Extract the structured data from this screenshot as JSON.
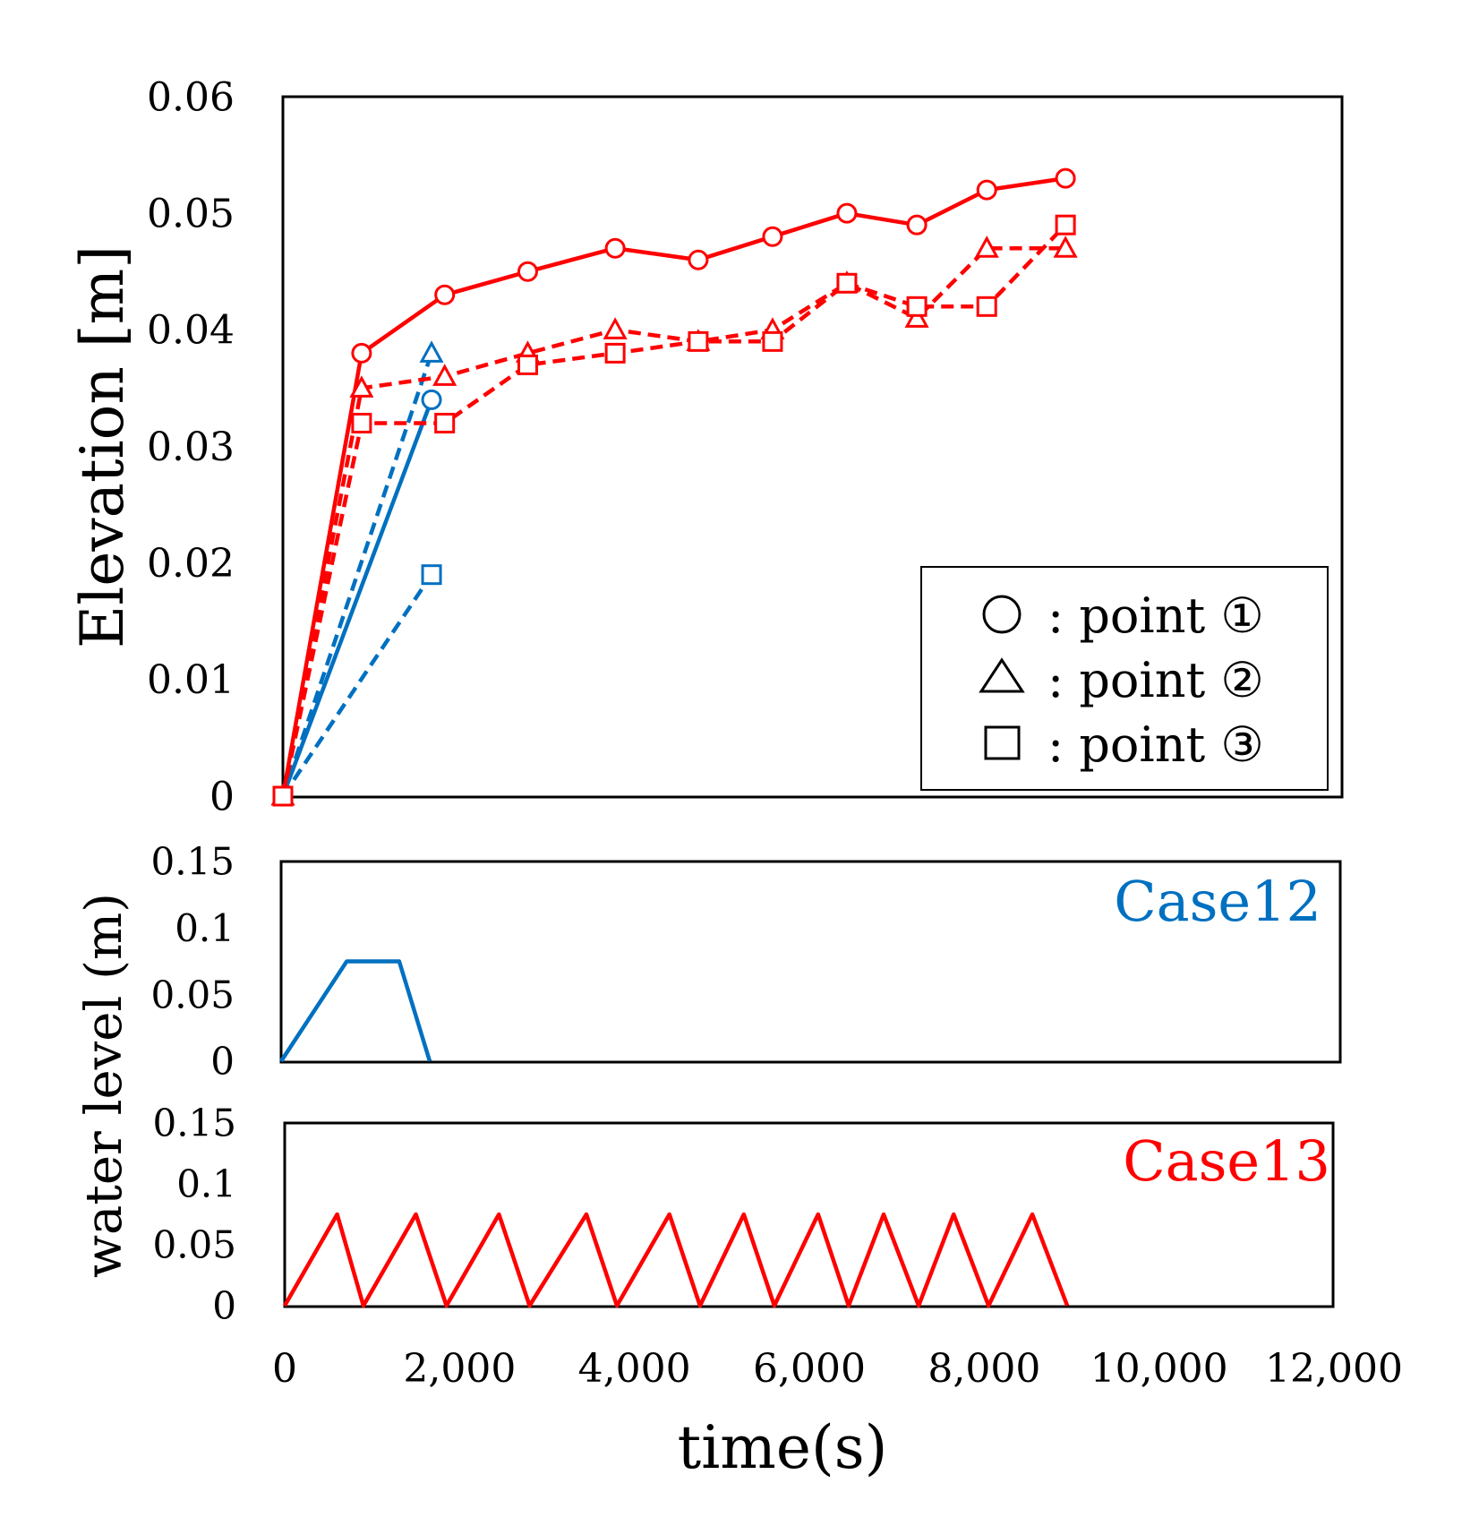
{
  "chart_data": [
    {
      "type": "line",
      "title": "",
      "xlabel": "time(s)",
      "ylabel": "Elevation [m]",
      "xlim": [
        0,
        12000
      ],
      "ylim": [
        0,
        0.06
      ],
      "yticks": [
        "0",
        "0.01",
        "0.02",
        "0.03",
        "0.04",
        "0.05",
        "0.06"
      ],
      "legend": {
        "placement": "bottom-right",
        "entries": [
          {
            "marker": "circle",
            "label": ":  point ①"
          },
          {
            "marker": "triangle",
            "label": ":  point ②"
          },
          {
            "marker": "square",
            "label": ":  point ③"
          }
        ]
      },
      "series": [
        {
          "name": "Case12 point ①",
          "color": "#0070C0",
          "dash": "solid",
          "marker": "circle",
          "x": [
            0,
            1700
          ],
          "values": [
            0,
            0.034
          ]
        },
        {
          "name": "Case12 point ②",
          "color": "#0070C0",
          "dash": "dashed",
          "marker": "triangle",
          "x": [
            0,
            1700
          ],
          "values": [
            0,
            0.038
          ]
        },
        {
          "name": "Case12 point ③",
          "color": "#0070C0",
          "dash": "dashed",
          "marker": "square",
          "x": [
            0,
            1700
          ],
          "values": [
            0,
            0.019
          ]
        },
        {
          "name": "Case13 point ①",
          "color": "#FF0000",
          "dash": "solid",
          "marker": "circle",
          "x": [
            0,
            900,
            1850,
            2800,
            3800,
            4750,
            5600,
            6450,
            7250,
            8050,
            8950
          ],
          "values": [
            0,
            0.038,
            0.043,
            0.045,
            0.047,
            0.046,
            0.048,
            0.05,
            0.049,
            0.052,
            0.053
          ]
        },
        {
          "name": "Case13 point ②",
          "color": "#FF0000",
          "dash": "dashed",
          "marker": "triangle",
          "x": [
            0,
            900,
            1850,
            2800,
            3800,
            4750,
            5600,
            6450,
            7250,
            8050,
            8950
          ],
          "values": [
            0,
            0.035,
            0.036,
            0.038,
            0.04,
            0.039,
            0.04,
            0.044,
            0.041,
            0.047,
            0.047
          ]
        },
        {
          "name": "Case13 point ③",
          "color": "#FF0000",
          "dash": "dashed",
          "marker": "square",
          "x": [
            0,
            900,
            1850,
            2800,
            3800,
            4750,
            5600,
            6450,
            7250,
            8050,
            8950
          ],
          "values": [
            0,
            0.032,
            0.032,
            0.037,
            0.038,
            0.039,
            0.039,
            0.044,
            0.042,
            0.042,
            0.049
          ]
        }
      ]
    },
    {
      "type": "line",
      "annotation": "Case12",
      "annotation_color": "#0070C0",
      "ylabel": "water level (m)",
      "xlim": [
        0,
        12000
      ],
      "ylim": [
        0,
        0.15
      ],
      "yticks": [
        "0",
        "0.05",
        "0.1",
        "0.15"
      ],
      "series": [
        {
          "name": "Case12",
          "color": "#0070C0",
          "x": [
            0,
            750,
            1350,
            1700
          ],
          "values": [
            0,
            0.075,
            0.075,
            0
          ]
        }
      ]
    },
    {
      "type": "line",
      "annotation": "Case13",
      "annotation_color": "#FF0000",
      "xlabel": "time(s)",
      "xlim": [
        0,
        12000
      ],
      "ylim": [
        0,
        0.15
      ],
      "yticks": [
        "0",
        "0.05",
        "0.1",
        "0.15"
      ],
      "xticks": [
        "0",
        "2,000",
        "4,000",
        "6,000",
        "8,000",
        "10,000",
        "12,000"
      ],
      "series": [
        {
          "name": "Case13",
          "color": "#FF0000",
          "x": [
            0,
            600,
            900,
            1500,
            1850,
            2450,
            2800,
            3450,
            3800,
            4400,
            4750,
            5250,
            5600,
            6100,
            6450,
            6850,
            7250,
            7650,
            8050,
            8550,
            8950
          ],
          "values": [
            0,
            0.075,
            0,
            0.075,
            0,
            0.075,
            0,
            0.075,
            0,
            0.075,
            0,
            0.075,
            0,
            0.075,
            0,
            0.075,
            0,
            0.075,
            0,
            0.075,
            0
          ]
        }
      ]
    }
  ]
}
